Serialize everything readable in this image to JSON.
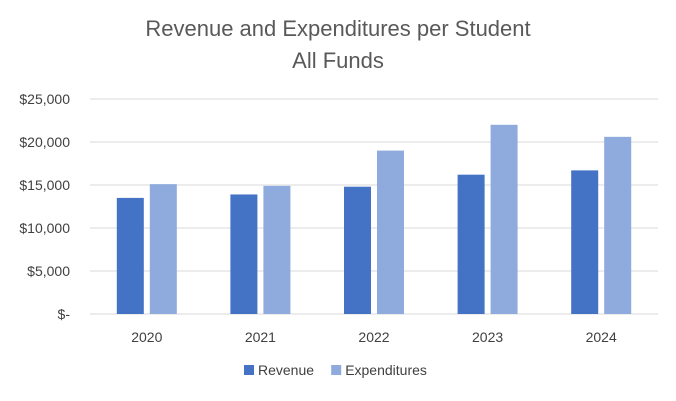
{
  "chart_data": {
    "type": "bar",
    "title": [
      "Revenue and Expenditures per Student",
      "All Funds"
    ],
    "xlabel": "",
    "ylabel": "",
    "categories": [
      "2020",
      "2021",
      "2022",
      "2023",
      "2024"
    ],
    "series": [
      {
        "name": "Revenue",
        "color": "#4472c4",
        "values": [
          13500,
          13900,
          14800,
          16200,
          16700
        ]
      },
      {
        "name": "Expenditures",
        "color": "#8faadc",
        "values": [
          15100,
          14900,
          19000,
          22000,
          20600
        ]
      }
    ],
    "ylim": [
      0,
      25000
    ],
    "yticks": [
      0,
      5000,
      10000,
      15000,
      20000,
      25000
    ],
    "ytick_labels": [
      "$-",
      "$5,000",
      "$10,000",
      "$15,000",
      "$20,000",
      "$25,000"
    ],
    "grid": true,
    "legend_position": "bottom"
  }
}
